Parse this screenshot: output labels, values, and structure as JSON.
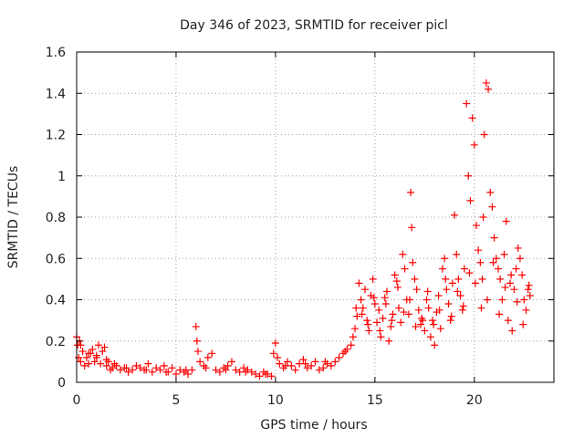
{
  "chart_data": {
    "type": "scatter",
    "title": "Day 346 of 2023, SRMTID for receiver picl",
    "xlabel": "GPS time / hours",
    "ylabel": "SRMTID / TECUs",
    "xlim": [
      0,
      24
    ],
    "ylim": [
      0,
      1.6
    ],
    "xticks": [
      0,
      5,
      10,
      15,
      20
    ],
    "xtick_labels": [
      "0",
      "5",
      "10",
      "15",
      "20"
    ],
    "yticks": [
      0,
      0.2,
      0.4,
      0.6,
      0.8,
      1.0,
      1.2,
      1.4,
      1.6
    ],
    "ytick_labels": [
      "0",
      "0.2",
      "0.4",
      "0.6",
      "0.8",
      "1",
      "1.2",
      "1.4",
      "1.6"
    ],
    "grid": true,
    "marker": "+",
    "color": "#ff0000",
    "series": [
      {
        "name": "SRMTID",
        "x": [
          0.0,
          0.05,
          0.1,
          0.15,
          0.2,
          0.3,
          0.4,
          0.5,
          0.6,
          0.7,
          0.8,
          0.9,
          1.0,
          1.1,
          1.2,
          1.3,
          1.4,
          1.5,
          1.6,
          1.7,
          1.8,
          1.9,
          2.0,
          2.2,
          2.4,
          2.6,
          2.8,
          3.0,
          3.2,
          3.4,
          3.6,
          3.8,
          4.0,
          4.2,
          4.4,
          4.6,
          4.8,
          5.0,
          5.2,
          5.4,
          5.6,
          5.8,
          6.0,
          6.05,
          6.1,
          6.2,
          6.4,
          6.6,
          6.8,
          7.0,
          7.2,
          7.4,
          7.6,
          7.8,
          8.0,
          8.2,
          8.4,
          8.6,
          8.8,
          9.0,
          9.2,
          9.4,
          9.6,
          9.8,
          9.9,
          10.0,
          10.1,
          10.2,
          10.4,
          10.6,
          10.8,
          11.0,
          11.2,
          11.4,
          11.6,
          11.8,
          12.0,
          12.2,
          12.4,
          12.6,
          12.8,
          13.0,
          13.2,
          13.4,
          13.6,
          13.8,
          13.9,
          14.0,
          14.1,
          14.2,
          14.3,
          14.4,
          14.5,
          14.6,
          14.7,
          14.8,
          14.9,
          15.0,
          15.1,
          15.2,
          15.3,
          15.4,
          15.5,
          15.6,
          15.7,
          15.8,
          15.9,
          16.0,
          16.1,
          16.2,
          16.3,
          16.4,
          16.5,
          16.6,
          16.7,
          16.8,
          16.85,
          16.9,
          17.0,
          17.1,
          17.2,
          17.3,
          17.4,
          17.5,
          17.6,
          17.7,
          17.8,
          17.9,
          18.0,
          18.1,
          18.2,
          18.3,
          18.4,
          18.5,
          18.6,
          18.7,
          18.8,
          18.9,
          19.0,
          19.1,
          19.2,
          19.3,
          19.4,
          19.5,
          19.6,
          19.7,
          19.8,
          19.9,
          20.0,
          20.1,
          20.2,
          20.3,
          20.4,
          20.45,
          20.5,
          20.6,
          20.7,
          20.8,
          20.9,
          21.0,
          21.1,
          21.2,
          21.3,
          21.4,
          21.5,
          21.6,
          21.7,
          21.8,
          21.9,
          22.0,
          22.1,
          22.2,
          22.3,
          22.4,
          22.5,
          22.6,
          22.7,
          22.8,
          0.2,
          0.6,
          1.0,
          1.5,
          2.5,
          3.5,
          4.5,
          5.5,
          6.5,
          7.5,
          8.5,
          9.5,
          10.5,
          11.5,
          12.5,
          13.5,
          14.05,
          14.35,
          14.65,
          14.95,
          15.25,
          15.55,
          15.85,
          16.15,
          16.45,
          16.75,
          17.05,
          17.35,
          17.65,
          17.95,
          18.25,
          18.55,
          18.85,
          19.15,
          19.45,
          19.75,
          20.05,
          20.35,
          20.65,
          20.95,
          21.25,
          21.55,
          21.85,
          22.15,
          22.45,
          22.75
        ],
        "y": [
          0.22,
          0.18,
          0.12,
          0.2,
          0.1,
          0.15,
          0.08,
          0.12,
          0.09,
          0.14,
          0.16,
          0.1,
          0.13,
          0.18,
          0.09,
          0.15,
          0.17,
          0.08,
          0.1,
          0.06,
          0.07,
          0.09,
          0.08,
          0.06,
          0.07,
          0.05,
          0.06,
          0.08,
          0.07,
          0.06,
          0.09,
          0.05,
          0.07,
          0.06,
          0.08,
          0.05,
          0.07,
          0.04,
          0.06,
          0.05,
          0.04,
          0.06,
          0.27,
          0.2,
          0.15,
          0.1,
          0.08,
          0.12,
          0.14,
          0.06,
          0.05,
          0.07,
          0.08,
          0.1,
          0.06,
          0.05,
          0.07,
          0.06,
          0.05,
          0.04,
          0.03,
          0.05,
          0.04,
          0.03,
          0.14,
          0.19,
          0.12,
          0.09,
          0.07,
          0.1,
          0.08,
          0.06,
          0.09,
          0.11,
          0.07,
          0.08,
          0.1,
          0.06,
          0.07,
          0.09,
          0.08,
          0.1,
          0.12,
          0.14,
          0.16,
          0.18,
          0.22,
          0.26,
          0.32,
          0.48,
          0.4,
          0.36,
          0.45,
          0.3,
          0.25,
          0.42,
          0.5,
          0.38,
          0.29,
          0.35,
          0.22,
          0.31,
          0.41,
          0.44,
          0.2,
          0.27,
          0.33,
          0.52,
          0.49,
          0.36,
          0.29,
          0.62,
          0.55,
          0.4,
          0.33,
          0.92,
          0.75,
          0.58,
          0.5,
          0.45,
          0.35,
          0.28,
          0.3,
          0.25,
          0.4,
          0.36,
          0.22,
          0.3,
          0.18,
          0.34,
          0.42,
          0.26,
          0.55,
          0.6,
          0.45,
          0.38,
          0.3,
          0.48,
          0.81,
          0.62,
          0.5,
          0.42,
          0.35,
          0.55,
          1.35,
          1.0,
          0.88,
          1.28,
          1.15,
          0.76,
          0.64,
          0.58,
          0.5,
          0.8,
          1.2,
          1.45,
          1.42,
          0.92,
          0.85,
          0.7,
          0.6,
          0.55,
          0.5,
          0.4,
          0.62,
          0.78,
          0.3,
          0.48,
          0.25,
          0.45,
          0.55,
          0.65,
          0.6,
          0.52,
          0.4,
          0.35,
          0.45,
          0.42,
          0.18,
          0.14,
          0.12,
          0.11,
          0.07,
          0.06,
          0.05,
          0.06,
          0.07,
          0.06,
          0.05,
          0.04,
          0.08,
          0.09,
          0.1,
          0.15,
          0.36,
          0.33,
          0.28,
          0.41,
          0.25,
          0.38,
          0.3,
          0.46,
          0.34,
          0.4,
          0.27,
          0.31,
          0.44,
          0.28,
          0.35,
          0.5,
          0.32,
          0.44,
          0.37,
          0.53,
          0.48,
          0.36,
          0.4,
          0.58,
          0.33,
          0.46,
          0.52,
          0.39,
          0.28,
          0.47
        ]
      }
    ]
  }
}
